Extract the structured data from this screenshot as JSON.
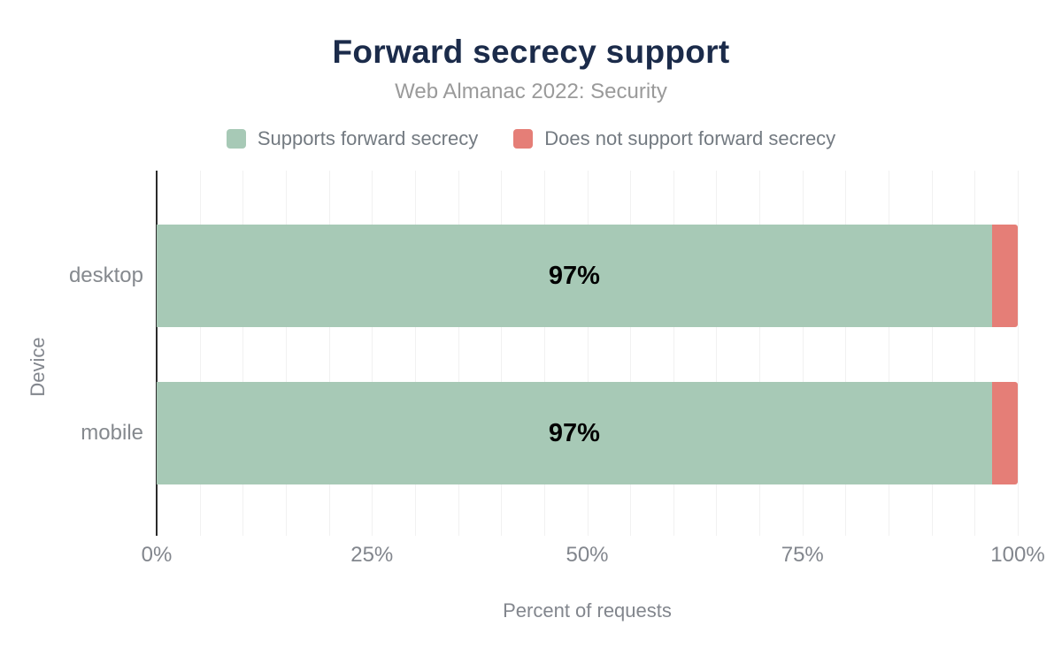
{
  "title": "Forward secrecy support",
  "subtitle": "Web Almanac 2022: Security",
  "chart_data": {
    "type": "bar",
    "orientation": "horizontal",
    "stacked": true,
    "title": "Forward secrecy support",
    "subtitle": "Web Almanac 2022: Security",
    "categories": [
      "desktop",
      "mobile"
    ],
    "series": [
      {
        "name": "Supports forward secrecy",
        "color": "#a7c9b6",
        "values": [
          97,
          97
        ]
      },
      {
        "name": "Does not support forward secrecy",
        "color": "#e57e77",
        "values": [
          3,
          3
        ]
      }
    ],
    "data_labels": [
      "97%",
      "97%"
    ],
    "xlabel": "Percent of requests",
    "ylabel": "Device",
    "xlim": [
      0,
      100
    ],
    "x_tick_labels": [
      "0%",
      "25%",
      "50%",
      "75%",
      "100%"
    ],
    "grid": {
      "vertical": true,
      "step_percent": 5
    },
    "legend_position": "top"
  },
  "style": {
    "background": "#ffffff",
    "title_color": "#1b2b4a",
    "subtitle_color": "#9a9a9a",
    "legend_text_color": "#737a81",
    "axis_text_color": "#82868d",
    "category_text_color": "#85898e",
    "axis_line_color": "#2b2b2b",
    "grid_color": "#f1f1f1",
    "data_label_color": "#000000"
  }
}
